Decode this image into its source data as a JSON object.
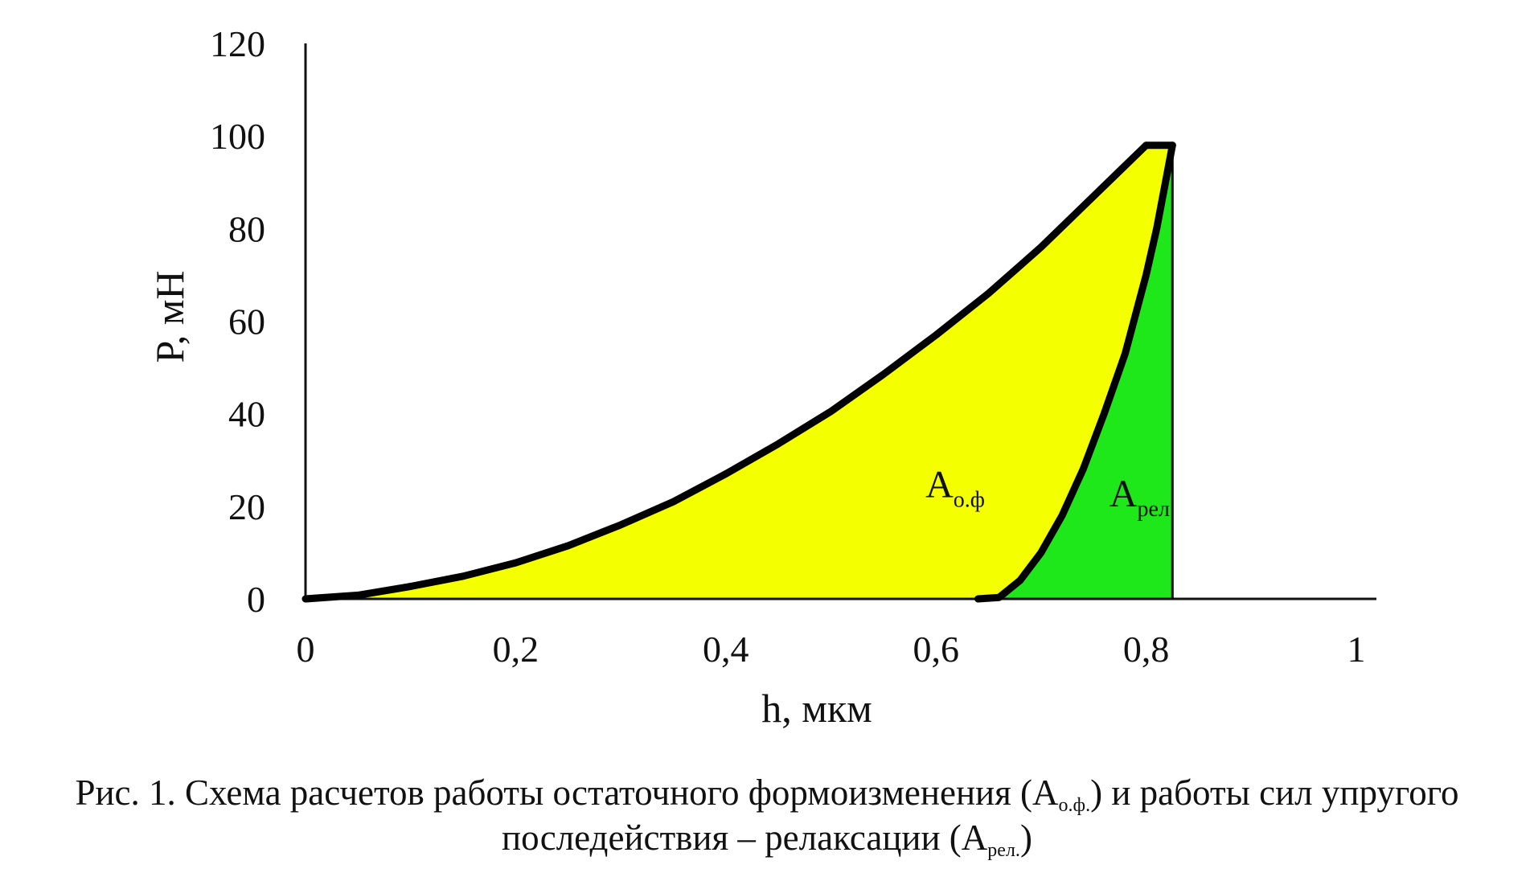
{
  "chart_data": {
    "type": "area",
    "xlabel": "h, мкм",
    "ylabel": "P, мН",
    "xlim": [
      0,
      1
    ],
    "ylim": [
      0,
      120
    ],
    "x_ticks": [
      0,
      0.2,
      0.4,
      0.6,
      0.8,
      1
    ],
    "x_tick_labels": [
      "0",
      "0,2",
      "0,4",
      "0,6",
      "0,8",
      "1"
    ],
    "y_ticks": [
      0,
      20,
      40,
      60,
      80,
      100,
      120
    ],
    "y_tick_labels": [
      "0",
      "20",
      "40",
      "60",
      "80",
      "100",
      "120"
    ],
    "grid": false,
    "legend": "none",
    "series": [
      {
        "role": "loading",
        "x": [
          0,
          0.05,
          0.1,
          0.15,
          0.2,
          0.25,
          0.3,
          0.35,
          0.4,
          0.45,
          0.5,
          0.55,
          0.6,
          0.65,
          0.7,
          0.75,
          0.8
        ],
        "y": [
          0,
          0.8,
          2.7,
          4.9,
          7.8,
          11.5,
          16,
          21,
          27,
          33.5,
          40.5,
          48.5,
          57,
          66,
          76,
          87,
          98
        ]
      },
      {
        "role": "hold",
        "x": [
          0.8,
          0.825
        ],
        "y": [
          98,
          98
        ]
      },
      {
        "role": "unloading",
        "x": [
          0.64,
          0.66,
          0.68,
          0.7,
          0.72,
          0.74,
          0.76,
          0.78,
          0.8,
          0.81,
          0.825
        ],
        "y": [
          0,
          0.3,
          4,
          10,
          18,
          28,
          40,
          53,
          70,
          80,
          98
        ]
      }
    ],
    "regions": [
      {
        "name": "A",
        "subscript": "о.ф",
        "color": "#f4ff00",
        "label_at": [
          0.59,
          22
        ]
      },
      {
        "name": "A",
        "subscript": "рел",
        "color": "#1fe81a",
        "label_at": [
          0.765,
          20
        ]
      }
    ],
    "caption_lines": [
      {
        "before": "Рис. 1. Схема расчетов работы остаточного формоизменения (A",
        "sub": "о.ф.",
        "after": ") и работы сил упругого"
      },
      {
        "before": "последействия – релаксации (A",
        "sub": "рел.",
        "after": ")"
      }
    ],
    "colors": {
      "line": "#000000",
      "yellow": "#f4ff00",
      "green": "#1fe81a",
      "axis": "#111111"
    }
  }
}
